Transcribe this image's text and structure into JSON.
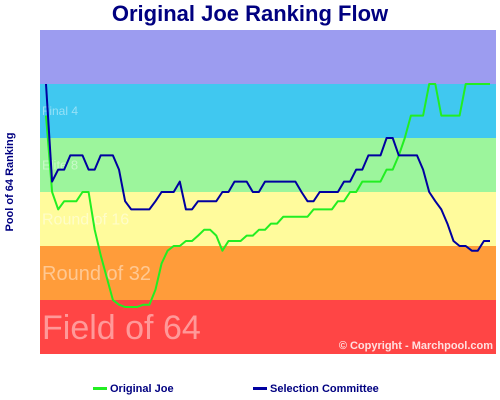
{
  "chart_data": {
    "type": "line",
    "title": "Original Joe Ranking Flow",
    "ylabel": "Pool of 64 Ranking",
    "xlabel": "",
    "ylim": [
      1,
      64
    ],
    "ylim_direction": "inverted",
    "bands": [
      {
        "label": "Field of 64",
        "from": 32,
        "to": 64,
        "color": "#ff4545"
      },
      {
        "label": "Round of 32",
        "from": 16,
        "to": 32,
        "color": "#ff9c3a"
      },
      {
        "label": "Round of 16",
        "from": 8,
        "to": 16,
        "color": "#fffb9c"
      },
      {
        "label": "Elite 8",
        "from": 4,
        "to": 8,
        "color": "#9cf59c"
      },
      {
        "label": "Final 4",
        "from": 2,
        "to": 4,
        "color": "#40c8f0"
      },
      {
        "label": "",
        "from": 1,
        "to": 2,
        "color": "#9c9cf0"
      }
    ],
    "x": [
      1,
      2,
      3,
      4,
      5,
      6,
      7,
      8,
      9,
      10,
      11,
      12,
      13,
      14,
      15,
      16,
      17,
      18,
      19,
      20,
      21,
      22,
      23,
      24,
      25,
      26,
      27,
      28,
      29,
      30,
      31,
      32,
      33,
      34,
      35,
      36,
      37,
      38,
      39,
      40,
      41,
      42,
      43,
      44,
      45,
      46,
      47,
      48,
      49,
      50,
      51,
      52,
      53,
      54,
      55,
      56,
      57,
      58,
      59,
      60,
      61,
      62,
      63,
      64,
      65,
      66,
      67,
      68,
      69,
      70,
      71,
      72,
      73,
      74
    ],
    "series": [
      {
        "name": "Original Joe",
        "color": "#22ee22",
        "values": [
          3,
          8,
          10,
          9,
          9,
          9,
          8,
          8,
          13,
          18,
          24,
          32,
          34,
          35,
          35,
          35,
          34,
          34,
          28,
          20,
          17,
          16,
          16,
          15,
          15,
          14,
          13,
          13,
          14,
          17,
          15,
          15,
          15,
          14,
          14,
          13,
          13,
          12,
          12,
          11,
          11,
          11,
          11,
          11,
          10,
          10,
          10,
          10,
          9,
          9,
          8,
          8,
          7,
          7,
          7,
          7,
          6,
          6,
          5,
          4,
          3,
          3,
          3,
          2,
          2,
          3,
          3,
          3,
          3,
          2,
          2,
          2,
          2,
          2
        ]
      },
      {
        "name": "Selection Committee",
        "color": "#0000a0",
        "values": [
          2,
          7,
          6,
          6,
          5,
          5,
          5,
          6,
          6,
          5,
          5,
          5,
          6,
          9,
          10,
          10,
          10,
          10,
          9,
          8,
          8,
          8,
          7,
          10,
          10,
          9,
          9,
          9,
          9,
          8,
          8,
          7,
          7,
          7,
          8,
          8,
          7,
          7,
          7,
          7,
          7,
          7,
          8,
          9,
          9,
          8,
          8,
          8,
          8,
          7,
          7,
          6,
          6,
          5,
          5,
          5,
          4,
          4,
          5,
          5,
          5,
          5,
          6,
          8,
          9,
          10,
          12,
          15,
          16,
          16,
          17,
          17,
          15,
          15
        ]
      }
    ]
  },
  "copyright": "© Copyright - Marchpool.com",
  "legend": {
    "items": [
      "Original Joe",
      "Selection Committee"
    ]
  }
}
